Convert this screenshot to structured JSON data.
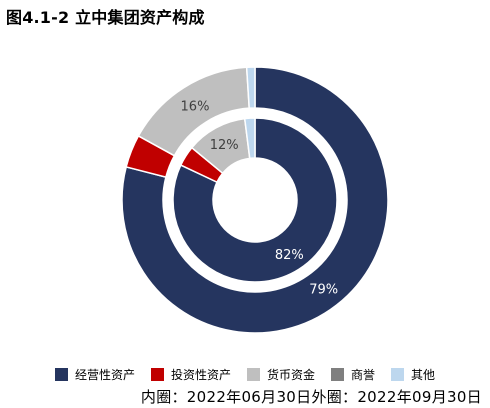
{
  "chart_data": {
    "type": "donut",
    "title": "图4.1-2 立中集团资产构成",
    "categories": [
      "经营性资产",
      "投资性资产",
      "货币资金",
      "商誉",
      "其他"
    ],
    "colors": [
      "#25355f",
      "#c00000",
      "#bfbfbf",
      "#7f7f7f",
      "#bdd7ee"
    ],
    "series": [
      {
        "ring": "outer",
        "values": [
          79,
          4,
          16,
          0,
          1
        ],
        "labels": [
          "79%",
          "",
          "16%",
          "",
          ""
        ]
      },
      {
        "ring": "inner",
        "values": [
          82,
          4,
          12,
          0,
          2
        ],
        "labels": [
          "82%",
          "",
          "12%",
          "",
          ""
        ]
      }
    ],
    "legend_position": "bottom",
    "footnote": "内圈：2022年06月30日外圈：2022年09月30日"
  }
}
